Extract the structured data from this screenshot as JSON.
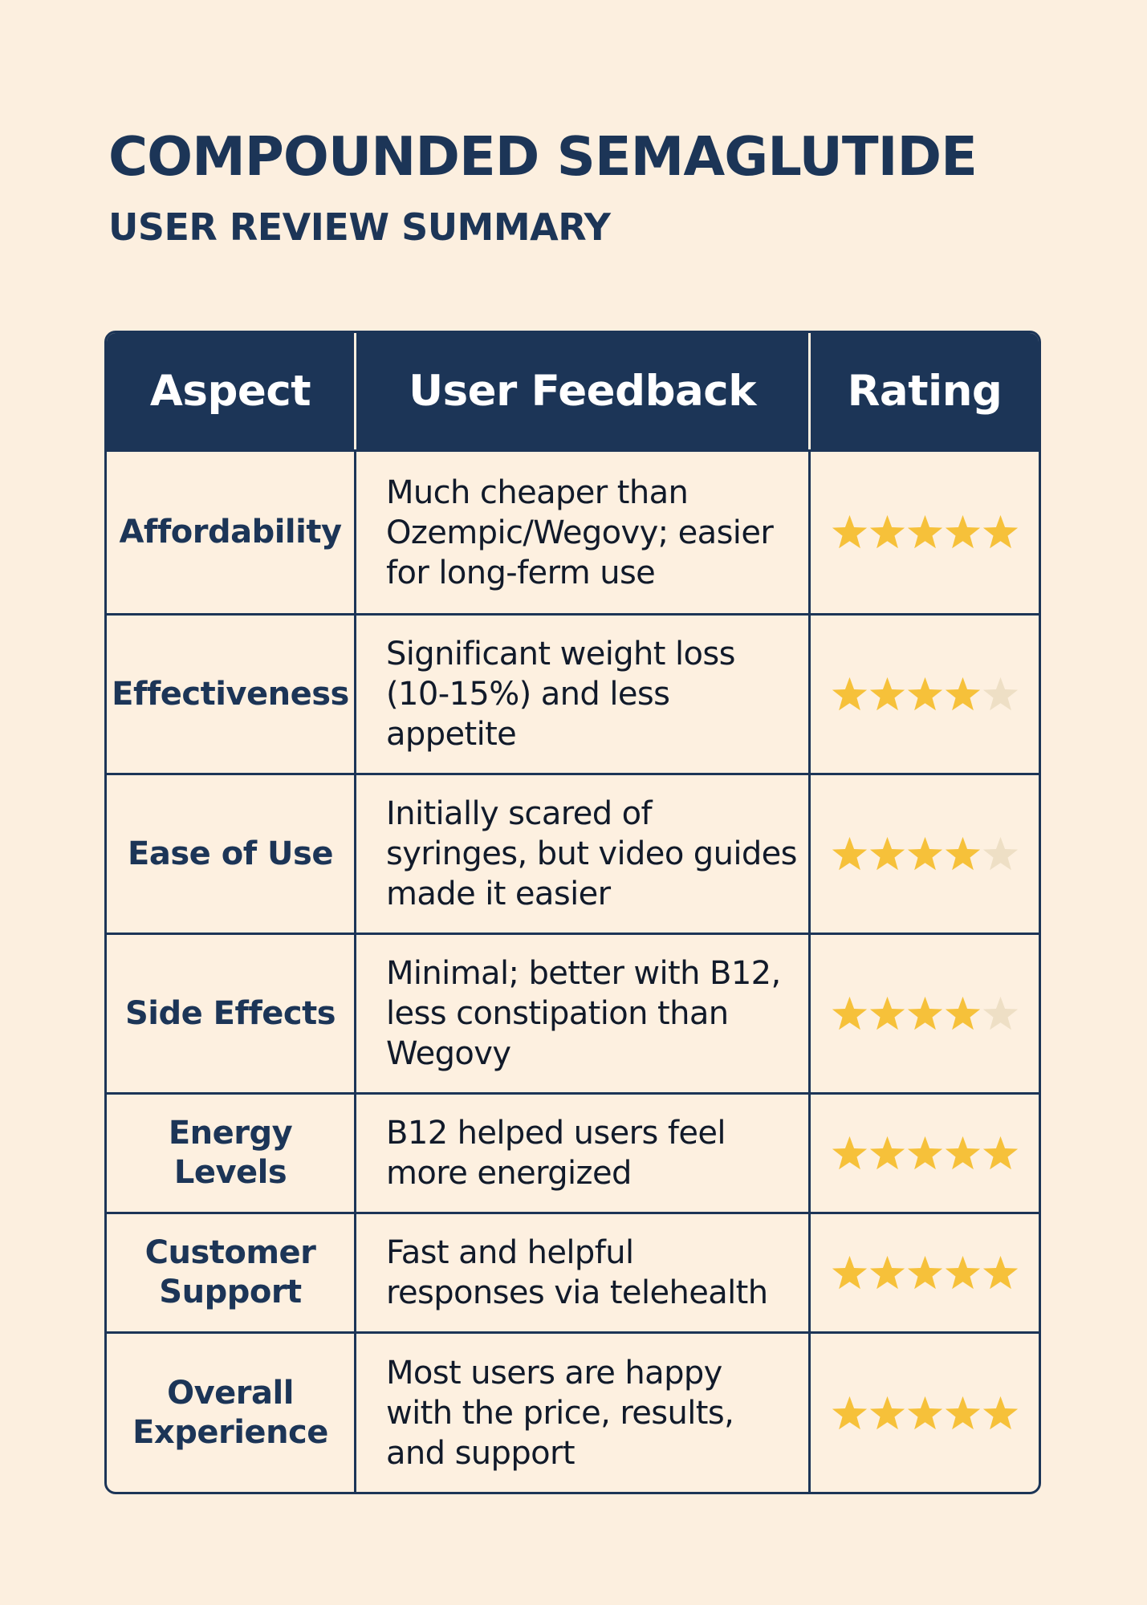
{
  "title": "COMPOUNDED SEMAGLUTIDE",
  "subtitle": "USER REVIEW SUMMARY",
  "table": {
    "headers": {
      "aspect": "Aspect",
      "feedback": "User Feedback",
      "rating": "Rating"
    },
    "star_max": 5,
    "colors": {
      "header_bg": "#1c3557",
      "star_filled": "#f6c13a",
      "star_empty": "#eedfc5",
      "page_bg": "#fcefdf"
    },
    "rows": [
      {
        "aspect": "Affordability",
        "feedback": "Much cheaper than Ozempic/Wegovy; easier for long-ferm use",
        "rating": 5
      },
      {
        "aspect": "Effectiveness",
        "feedback": "Significant weight loss (10-15%) and less appetite",
        "rating": 4
      },
      {
        "aspect": "Ease of Use",
        "feedback": "Initially scared of syringes, but video guides made it easier",
        "rating": 4
      },
      {
        "aspect": "Side Effects",
        "feedback": "Minimal; better with B12, less constipation than Wegovy",
        "rating": 4
      },
      {
        "aspect": "Energy Levels",
        "feedback": "B12 helped users feel more energized",
        "rating": 5
      },
      {
        "aspect": "Customer\nSupport",
        "feedback": "Fast and helpful responses via telehealth",
        "rating": 5
      },
      {
        "aspect": "Overall\nExperience",
        "feedback": "Most users are happy with the price, results, and support",
        "rating": 5
      }
    ]
  }
}
